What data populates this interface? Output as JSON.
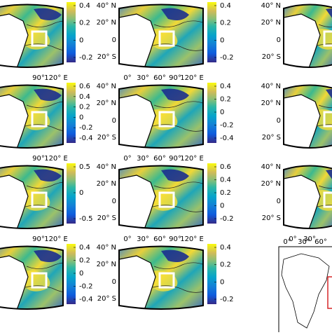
{
  "left_column": [
    {
      "lon_labels": [
        "90°",
        "120° E"
      ],
      "colorbar_ticks": [
        0.4,
        0.2,
        0,
        -0.2
      ]
    },
    {
      "lon_labels": [
        "90°",
        "120° E"
      ],
      "colorbar_ticks": [
        0.6,
        0.4,
        0.2,
        0,
        -0.2,
        -0.4
      ]
    },
    {
      "lon_labels": [
        "90°",
        "120° E"
      ],
      "colorbar_ticks": [
        0.5,
        0,
        -0.5
      ]
    },
    {
      "lon_labels": [],
      "colorbar_ticks": [
        0.4,
        0.2,
        0,
        -0.2,
        -0.4
      ]
    }
  ],
  "middle_column": [
    {
      "lat_labels": [
        "40° N",
        "20° N",
        "0",
        "20° S"
      ],
      "lon_labels": [
        "0°",
        "30°",
        "60°",
        "90°",
        "120° E"
      ],
      "colorbar_ticks": [
        0.4,
        0.2,
        0,
        -0.2
      ]
    },
    {
      "lat_labels": [
        "40° N",
        "20° N",
        "0",
        "20° S"
      ],
      "lon_labels": [
        "0°",
        "30°",
        "60°",
        "90°",
        "120° E"
      ],
      "colorbar_ticks": [
        0.4,
        0.2,
        0,
        -0.2,
        -0.4
      ]
    },
    {
      "lat_labels": [
        "40° N",
        "20° N",
        "0",
        "20° S"
      ],
      "lon_labels": [
        "0°",
        "30°",
        "60°",
        "90°",
        "120° E"
      ],
      "colorbar_ticks": [
        0.6,
        0.4,
        0.2,
        0,
        -0.2
      ]
    },
    {
      "lat_labels": [
        "40° N",
        "20° N",
        "0",
        "20° S"
      ],
      "lon_labels": [],
      "colorbar_ticks": [
        0.4,
        0.2,
        0,
        -0.2
      ]
    }
  ],
  "right_column": [
    {
      "lat_labels": [
        "40° N",
        "20° N",
        "0",
        "20° S"
      ],
      "lon_labels": []
    },
    {
      "lat_labels": [
        "40° N",
        "20° N",
        "0",
        "20° S"
      ],
      "lon_labels": []
    },
    {
      "lat_labels": [
        "40° N",
        "20° N",
        "0",
        "20° S"
      ],
      "lon_labels": [
        "0°",
        "30°"
      ]
    }
  ],
  "location_map": {
    "lon_labels": [
      "0°",
      "30°",
      "60°"
    ]
  }
}
